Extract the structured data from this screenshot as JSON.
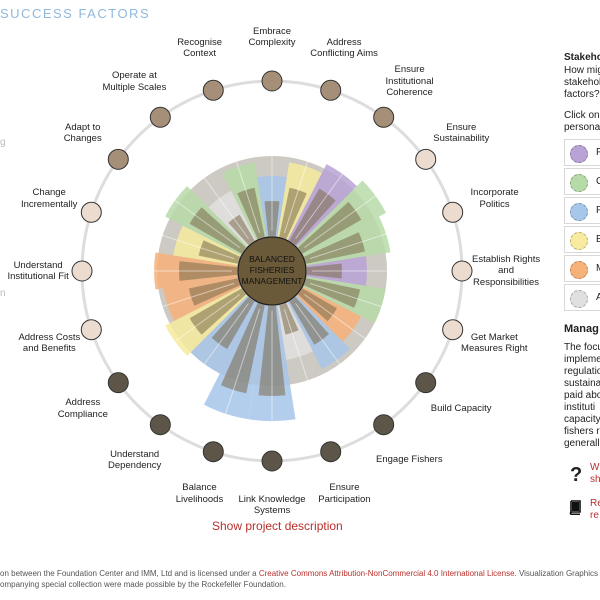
{
  "header": {
    "title": "SUCCESS FACTORS"
  },
  "left_fragments": {
    "frag1": "g",
    "frag2": "n"
  },
  "center": {
    "line1": "BALANCED",
    "line2": "FISHERIES",
    "line3": "MANAGEMENT"
  },
  "factors": [
    {
      "label": [
        "Embrace",
        "Complexity"
      ],
      "node_color": "#a68f78"
    },
    {
      "label": [
        "Address",
        "Conflicting Aims"
      ],
      "node_color": "#a68f78"
    },
    {
      "label": [
        "Ensure",
        "Institutional",
        "Coherence"
      ],
      "node_color": "#a68f78"
    },
    {
      "label": [
        "Ensure",
        "Sustainability"
      ],
      "node_color": "#ecdcd0"
    },
    {
      "label": [
        "Incorporate",
        "Politics"
      ],
      "node_color": "#ecdcd0"
    },
    {
      "label": [
        "Establish Rights",
        "and",
        "Responsibilities"
      ],
      "node_color": "#ecdcd0"
    },
    {
      "label": [
        "Get Market",
        "Measures Right"
      ],
      "node_color": "#ecdcd0"
    },
    {
      "label": [
        "Build Capacity"
      ],
      "node_color": "#5d5648"
    },
    {
      "label": [
        "Engage Fishers"
      ],
      "node_color": "#5d5648"
    },
    {
      "label": [
        "Ensure",
        "Participation"
      ],
      "node_color": "#5d5648"
    },
    {
      "label": [
        "Link Knowledge",
        "Systems"
      ],
      "node_color": "#5d5648"
    },
    {
      "label": [
        "Balance",
        "Livelihoods"
      ],
      "node_color": "#5d5648"
    },
    {
      "label": [
        "Understand",
        "Dependency"
      ],
      "node_color": "#5d5648"
    },
    {
      "label": [
        "Address",
        "Compliance"
      ],
      "node_color": "#5d5648"
    },
    {
      "label": [
        "Address Costs",
        "and Benefits"
      ],
      "node_color": "#ecdcd0"
    },
    {
      "label": [
        "Understand",
        "Institutional Fit"
      ],
      "node_color": "#ecdcd0"
    },
    {
      "label": [
        "Change",
        "Incrementally"
      ],
      "node_color": "#ecdcd0"
    },
    {
      "label": [
        "Adapt to",
        "Changes"
      ],
      "node_color": "#a68f78"
    },
    {
      "label": [
        "Operate at",
        "Multiple Scales"
      ],
      "node_color": "#a68f78"
    },
    {
      "label": [
        "Recognise",
        "Context"
      ],
      "node_color": "#a68f78"
    }
  ],
  "persona_colors": {
    "P": "#b9a3d6",
    "C": "#b7dba8",
    "F": "#a6c6ea",
    "E": "#f6eb9e",
    "M": "#f7b27a",
    "A": "#e0e0e0"
  },
  "right_panel": {
    "heading": "Stakeho",
    "line1": "How mig",
    "line2": "stakehol",
    "line3": "factors?",
    "click1": "Click on ",
    "click2": "personas",
    "personas": [
      "P",
      "C",
      "F",
      "E",
      "M",
      "A"
    ],
    "section_heading": "Manag",
    "desc": [
      "The focu",
      "impleme",
      "regulatio",
      "sustaina",
      "paid abo",
      "instituti",
      "capacity",
      "fishers r",
      "generall"
    ],
    "link1a": "Wh",
    "link1b": "sh",
    "link2a": "Re",
    "link2b": "re"
  },
  "show_project_label": "Show project description",
  "footer": {
    "line1_prefix": "on between the Foundation Center and IMM, Ltd and is licensed under a ",
    "license_link": "Creative Commons Attribution-NonCommercial 4.0 International License",
    "line1_suffix": ". Visualization Graphics by ",
    "viz_link": "T",
    "line2": "ompanying special collection were made possible by the Rockefeller Foundation."
  }
}
